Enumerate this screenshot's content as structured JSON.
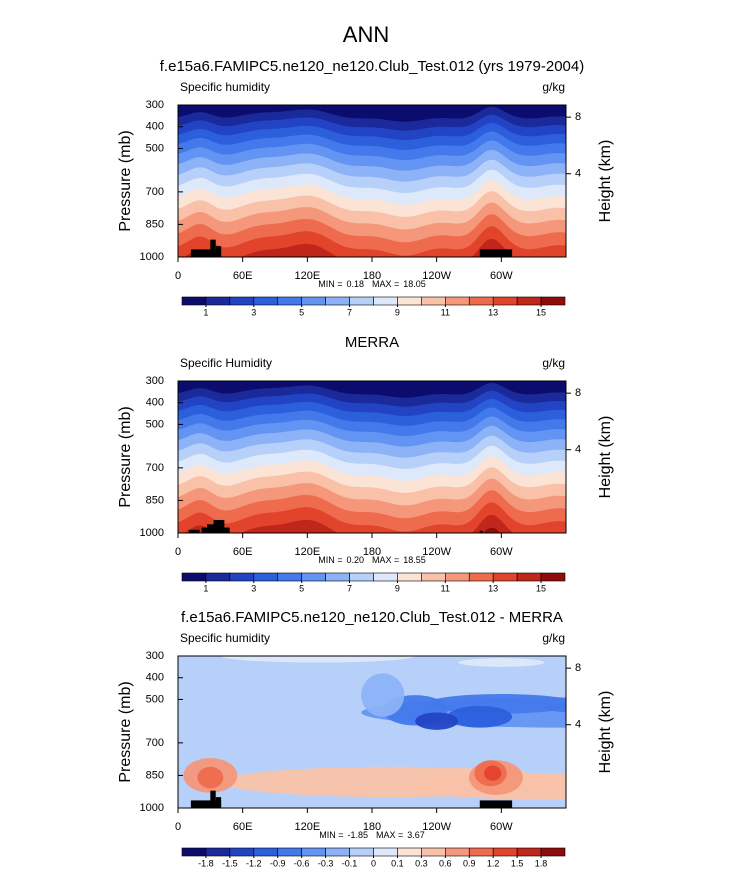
{
  "title": "ANN",
  "chart_data": [
    {
      "type": "contour",
      "title": "f.e15a6.FAMIPC5.ne120_ne120.Club_Test.012 (yrs 1979-2004)",
      "left_label": "Specific humidity",
      "right_label": "g/kg",
      "ylabel": "Pressure (mb)",
      "y2label": "Height (km)",
      "xlim": [
        0,
        360
      ],
      "xticks": [
        0,
        {
          "value": 60,
          "label": "60E"
        },
        {
          "value": 120,
          "label": "120E"
        },
        180,
        {
          "value": 240,
          "label": "120W"
        },
        {
          "value": 300,
          "label": "60W"
        }
      ],
      "ylim": [
        1000,
        300
      ],
      "yticks": [
        300,
        400,
        500,
        700,
        850,
        1000
      ],
      "y2ticks": [
        8,
        4
      ],
      "min_label": "MIN =",
      "min": 0.18,
      "max_label": "MAX =",
      "max": 18.05,
      "colorbar": {
        "scale": "linear",
        "clim": [
          0,
          16
        ],
        "ticks": [
          1,
          3,
          5,
          7,
          9,
          11,
          13,
          15
        ],
        "colors": [
          "#0c0c6e",
          "#1a2a9a",
          "#2244c4",
          "#2c5fdc",
          "#4479ec",
          "#6394f3",
          "#8cb2f7",
          "#b7d0f9",
          "#dde9fa",
          "#fbe3d6",
          "#f9c2a8",
          "#f4977a",
          "#ee6b4d",
          "#e2432b",
          "#c0261a",
          "#8e0c0c"
        ]
      }
    },
    {
      "type": "contour",
      "title": "MERRA",
      "left_label": "Specific Humidity",
      "right_label": "g/kg",
      "ylabel": "Pressure (mb)",
      "y2label": "Height (km)",
      "xlim": [
        0,
        360
      ],
      "xticks": [
        0,
        {
          "value": 60,
          "label": "60E"
        },
        {
          "value": 120,
          "label": "120E"
        },
        180,
        {
          "value": 240,
          "label": "120W"
        },
        {
          "value": 300,
          "label": "60W"
        }
      ],
      "ylim": [
        1000,
        300
      ],
      "yticks": [
        300,
        400,
        500,
        700,
        850,
        1000
      ],
      "y2ticks": [
        8,
        4
      ],
      "min_label": "MIN =",
      "min": {
        "value": 0.2,
        "label": "0.20"
      },
      "max_label": "MAX =",
      "max": 18.55,
      "colorbar": {
        "scale": "linear",
        "clim": [
          0,
          16
        ],
        "ticks": [
          1,
          3,
          5,
          7,
          9,
          11,
          13,
          15
        ],
        "colors": [
          "#0c0c6e",
          "#1a2a9a",
          "#2244c4",
          "#2c5fdc",
          "#4479ec",
          "#6394f3",
          "#8cb2f7",
          "#b7d0f9",
          "#dde9fa",
          "#fbe3d6",
          "#f9c2a8",
          "#f4977a",
          "#ee6b4d",
          "#e2432b",
          "#c0261a",
          "#8e0c0c"
        ]
      }
    },
    {
      "type": "contour-difference",
      "title": "f.e15a6.FAMIPC5.ne120_ne120.Club_Test.012 - MERRA",
      "left_label": "Specific humidity",
      "right_label": "g/kg",
      "ylabel": "Pressure (mb)",
      "y2label": "Height (km)",
      "xlim": [
        0,
        360
      ],
      "xticks": [
        0,
        {
          "value": 60,
          "label": "60E"
        },
        {
          "value": 120,
          "label": "120E"
        },
        180,
        {
          "value": 240,
          "label": "120W"
        },
        {
          "value": 300,
          "label": "60W"
        }
      ],
      "ylim": [
        1000,
        300
      ],
      "yticks": [
        300,
        400,
        500,
        700,
        850,
        1000
      ],
      "y2ticks": [
        8,
        4
      ],
      "min_label": "MIN =",
      "min": -1.85,
      "max_label": "MAX =",
      "max": 3.67,
      "colorbar": {
        "scale": "index",
        "ticks": [
          -1.8,
          -1.5,
          -1.2,
          -0.9,
          -0.6,
          -0.3,
          -0.1,
          0,
          0.1,
          0.3,
          0.6,
          0.9,
          1.2,
          1.5,
          1.8
        ],
        "colors": [
          "#0c0c6e",
          "#1a2a9a",
          "#2244c4",
          "#2c5fdc",
          "#4479ec",
          "#6394f3",
          "#8cb2f7",
          "#b7d0f9",
          "#dde9fa",
          "#fbe3d6",
          "#f9c2a8",
          "#f4977a",
          "#ee6b4d",
          "#e2432b",
          "#c0261a",
          "#8e0c0c"
        ]
      }
    }
  ]
}
